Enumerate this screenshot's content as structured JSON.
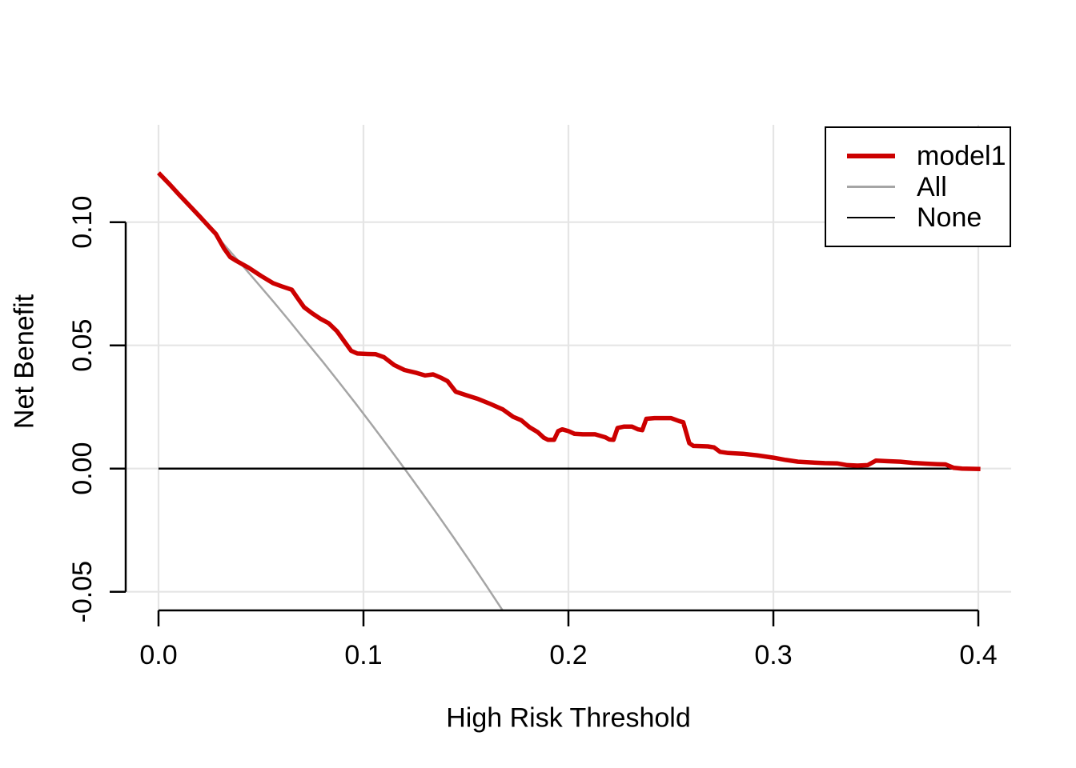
{
  "chart_data": {
    "type": "line",
    "title": "",
    "xlabel": "High Risk Threshold",
    "ylabel": "Net Benefit",
    "xlim": [
      0,
      0.4
    ],
    "ylim": [
      -0.0577,
      0.1395
    ],
    "grid": true,
    "grid_color": "#E5E5E5",
    "x_tick_values": [
      0.0,
      0.1,
      0.2,
      0.3,
      0.4
    ],
    "x_tick_labels": [
      "0.0",
      "0.1",
      "0.2",
      "0.3",
      "0.4"
    ],
    "y_tick_values": [
      -0.05,
      0.0,
      0.05,
      0.1
    ],
    "y_tick_labels": [
      "-0.05",
      "0.00",
      "0.05",
      "0.10"
    ],
    "legend": {
      "position": "top-right",
      "entries": [
        {
          "label": "model1",
          "color": "#CC0000",
          "lw": 6
        },
        {
          "label": "All",
          "color": "#A5A5A5",
          "lw": 2.5
        },
        {
          "label": "None",
          "color": "#000000",
          "lw": 2.5
        }
      ]
    },
    "series": [
      {
        "name": "All",
        "color": "#A5A5A5",
        "width": 2.5,
        "points": [
          [
            0,
            0.12
          ],
          [
            0.008,
            0.1129
          ],
          [
            0.016,
            0.1057
          ],
          [
            0.024,
            0.0984
          ],
          [
            0.032,
            0.0909
          ],
          [
            0.04,
            0.0833
          ],
          [
            0.048,
            0.0756
          ],
          [
            0.056,
            0.0678
          ],
          [
            0.064,
            0.0598
          ],
          [
            0.072,
            0.0516
          ],
          [
            0.08,
            0.0435
          ],
          [
            0.088,
            0.0351
          ],
          [
            0.096,
            0.0266
          ],
          [
            0.104,
            0.0179
          ],
          [
            0.112,
            0.009
          ],
          [
            0.12,
            0.0
          ],
          [
            0.128,
            -0.0092
          ],
          [
            0.136,
            -0.0185
          ],
          [
            0.144,
            -0.028
          ],
          [
            0.152,
            -0.0377
          ],
          [
            0.16,
            -0.0476
          ],
          [
            0.168,
            -0.0577
          ]
        ]
      },
      {
        "name": "None",
        "color": "#000000",
        "width": 2.5,
        "points": [
          [
            0,
            0
          ],
          [
            0.4,
            0
          ]
        ]
      },
      {
        "name": "model1",
        "color": "#CC0000",
        "width": 5.5,
        "points": [
          [
            0,
            0.12
          ],
          [
            0.005,
            0.1157
          ],
          [
            0.01,
            0.1112
          ],
          [
            0.015,
            0.1068
          ],
          [
            0.02,
            0.1024
          ],
          [
            0.025,
            0.0979
          ],
          [
            0.028,
            0.0952
          ],
          [
            0.032,
            0.0893
          ],
          [
            0.035,
            0.0858
          ],
          [
            0.038,
            0.0843
          ],
          [
            0.044,
            0.0815
          ],
          [
            0.05,
            0.0782
          ],
          [
            0.056,
            0.0752
          ],
          [
            0.06,
            0.074
          ],
          [
            0.065,
            0.0726
          ],
          [
            0.068,
            0.069
          ],
          [
            0.071,
            0.0655
          ],
          [
            0.075,
            0.063
          ],
          [
            0.079,
            0.0608
          ],
          [
            0.083,
            0.059
          ],
          [
            0.087,
            0.0558
          ],
          [
            0.091,
            0.0512
          ],
          [
            0.094,
            0.0478
          ],
          [
            0.097,
            0.0467
          ],
          [
            0.102,
            0.0465
          ],
          [
            0.106,
            0.0464
          ],
          [
            0.11,
            0.0452
          ],
          [
            0.115,
            0.042
          ],
          [
            0.12,
            0.04
          ],
          [
            0.126,
            0.0388
          ],
          [
            0.13,
            0.0378
          ],
          [
            0.134,
            0.0382
          ],
          [
            0.138,
            0.0368
          ],
          [
            0.141,
            0.0355
          ],
          [
            0.145,
            0.0312
          ],
          [
            0.15,
            0.0298
          ],
          [
            0.156,
            0.0282
          ],
          [
            0.162,
            0.0262
          ],
          [
            0.168,
            0.024
          ],
          [
            0.173,
            0.021
          ],
          [
            0.177,
            0.0196
          ],
          [
            0.181,
            0.0168
          ],
          [
            0.185,
            0.0148
          ],
          [
            0.188,
            0.0125
          ],
          [
            0.19,
            0.0117
          ],
          [
            0.193,
            0.0117
          ],
          [
            0.195,
            0.0152
          ],
          [
            0.197,
            0.0159
          ],
          [
            0.2,
            0.0152
          ],
          [
            0.203,
            0.0141
          ],
          [
            0.207,
            0.0139
          ],
          [
            0.213,
            0.0139
          ],
          [
            0.218,
            0.0127
          ],
          [
            0.22,
            0.0118
          ],
          [
            0.222,
            0.0117
          ],
          [
            0.224,
            0.0165
          ],
          [
            0.227,
            0.017
          ],
          [
            0.231,
            0.017
          ],
          [
            0.234,
            0.0159
          ],
          [
            0.236,
            0.0156
          ],
          [
            0.238,
            0.0202
          ],
          [
            0.242,
            0.0205
          ],
          [
            0.25,
            0.0205
          ],
          [
            0.254,
            0.0193
          ],
          [
            0.256,
            0.0188
          ],
          [
            0.259,
            0.0103
          ],
          [
            0.261,
            0.0092
          ],
          [
            0.268,
            0.009
          ],
          [
            0.271,
            0.0086
          ],
          [
            0.274,
            0.0068
          ],
          [
            0.278,
            0.0063
          ],
          [
            0.285,
            0.006
          ],
          [
            0.292,
            0.0054
          ],
          [
            0.3,
            0.0044
          ],
          [
            0.306,
            0.0035
          ],
          [
            0.312,
            0.0028
          ],
          [
            0.318,
            0.0025
          ],
          [
            0.325,
            0.0022
          ],
          [
            0.331,
            0.0021
          ],
          [
            0.336,
            0.0014
          ],
          [
            0.341,
            0.0012
          ],
          [
            0.346,
            0.0014
          ],
          [
            0.35,
            0.0032
          ],
          [
            0.356,
            0.003
          ],
          [
            0.362,
            0.0028
          ],
          [
            0.368,
            0.0023
          ],
          [
            0.374,
            0.002
          ],
          [
            0.38,
            0.0018
          ],
          [
            0.384,
            0.0017
          ],
          [
            0.388,
            0.0003
          ],
          [
            0.392,
            0.0
          ],
          [
            0.401,
            -0.0002
          ]
        ]
      }
    ]
  }
}
